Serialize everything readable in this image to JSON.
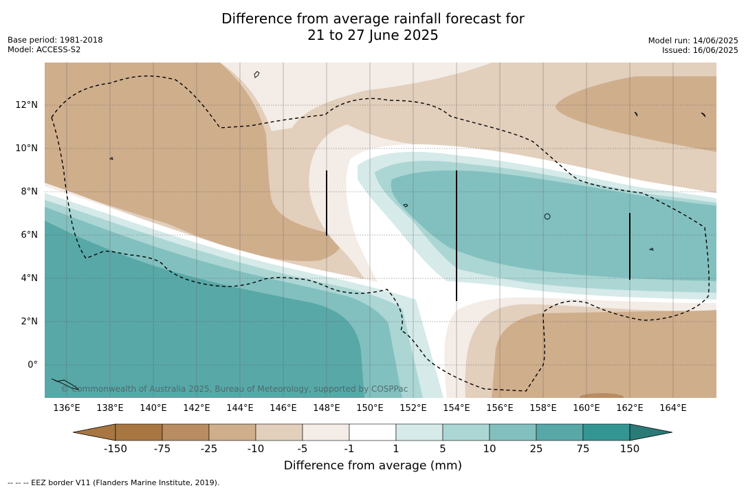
{
  "title": {
    "line1": "Difference from average rainfall forecast for",
    "line2": "21 to 27 June 2025"
  },
  "meta_left": {
    "base_period": "Base period: 1981-2018",
    "model": "Model: ACCESS-S2"
  },
  "meta_right": {
    "model_run": "Model run: 14/06/2025",
    "issued": "Issued: 16/06/2025"
  },
  "map": {
    "lat_labels": [
      "12°N",
      "10°N",
      "8°N",
      "6°N",
      "4°N",
      "2°N",
      "0°"
    ],
    "lon_labels": [
      "136°E",
      "138°E",
      "140°E",
      "142°E",
      "144°E",
      "146°E",
      "148°E",
      "150°E",
      "152°E",
      "154°E",
      "156°E",
      "158°E",
      "160°E",
      "162°E",
      "164°E"
    ],
    "copyright": "© Commonwealth of Australia 2025, Bureau of Meteorology, supported by COSPPac"
  },
  "colorbar": {
    "labels": [
      "-150",
      "-75",
      "-25",
      "-10",
      "-5",
      "-1",
      "1",
      "5",
      "10",
      "25",
      "75",
      "150"
    ],
    "colors": [
      "#a87640",
      "#b98c61",
      "#cfae8c",
      "#e2cfbc",
      "#f4ece6",
      "#ffffff",
      "#d5eae9",
      "#abd6d4",
      "#82c0bf",
      "#58a8a8",
      "#349693",
      "#2a7a78"
    ],
    "title": "Difference from average (mm)"
  },
  "footer": "--  --  -- EEZ border V11 (Flanders Marine Institute, 2019)."
}
